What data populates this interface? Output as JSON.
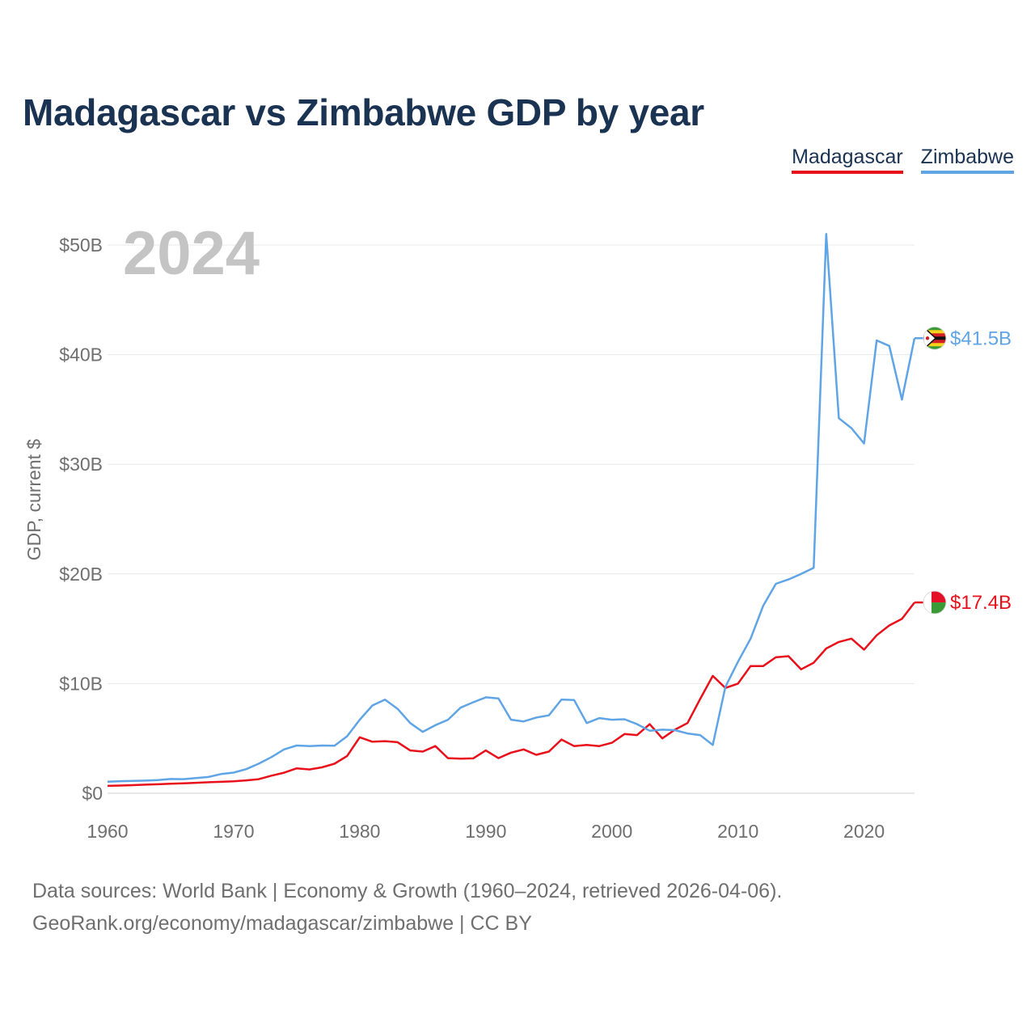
{
  "chart_data": {
    "type": "line",
    "title": "Madagascar vs Zimbabwe GDP by year",
    "ylabel": "GDP, current $",
    "xlabel": "",
    "year_label": "2024",
    "xlim": [
      1960,
      2024
    ],
    "ylim": [
      0,
      52
    ],
    "x_ticks": [
      1960,
      1970,
      1980,
      1990,
      2000,
      2010,
      2020
    ],
    "y_ticks": [
      {
        "value": 0,
        "label": "$0"
      },
      {
        "value": 10,
        "label": "$10B"
      },
      {
        "value": 20,
        "label": "$20B"
      },
      {
        "value": 30,
        "label": "$30B"
      },
      {
        "value": 40,
        "label": "$40B"
      },
      {
        "value": 50,
        "label": "$50B"
      }
    ],
    "grid": true,
    "legend_position": "top-right",
    "unit": "billions USD",
    "series": [
      {
        "name": "Madagascar",
        "color": "#e8101a",
        "end_label": "$17.4B",
        "flag": "madagascar-flag",
        "x": [
          1960,
          1961,
          1962,
          1963,
          1964,
          1965,
          1966,
          1967,
          1968,
          1969,
          1970,
          1971,
          1972,
          1973,
          1974,
          1975,
          1976,
          1977,
          1978,
          1979,
          1980,
          1981,
          1982,
          1983,
          1984,
          1985,
          1986,
          1987,
          1988,
          1989,
          1990,
          1991,
          1992,
          1993,
          1994,
          1995,
          1996,
          1997,
          1998,
          1999,
          2000,
          2001,
          2002,
          2003,
          2004,
          2005,
          2006,
          2007,
          2008,
          2009,
          2010,
          2011,
          2012,
          2013,
          2014,
          2015,
          2016,
          2017,
          2018,
          2019,
          2020,
          2021,
          2022,
          2023,
          2024
        ],
        "values": [
          0.67,
          0.7,
          0.74,
          0.78,
          0.82,
          0.86,
          0.9,
          0.95,
          1.0,
          1.04,
          1.09,
          1.17,
          1.28,
          1.6,
          1.87,
          2.27,
          2.17,
          2.36,
          2.69,
          3.4,
          5.1,
          4.7,
          4.75,
          4.65,
          3.9,
          3.8,
          4.3,
          3.2,
          3.15,
          3.18,
          3.9,
          3.2,
          3.7,
          4.0,
          3.5,
          3.8,
          4.9,
          4.3,
          4.4,
          4.3,
          4.6,
          5.4,
          5.3,
          6.3,
          5.0,
          5.8,
          6.4,
          8.6,
          10.7,
          9.6,
          10.0,
          11.6,
          11.6,
          12.4,
          12.5,
          11.3,
          11.9,
          13.2,
          13.8,
          14.1,
          13.1,
          14.4,
          15.3,
          15.9,
          17.4
        ]
      },
      {
        "name": "Zimbabwe",
        "color": "#5fa5e6",
        "end_label": "$41.5B",
        "flag": "zimbabwe-flag",
        "x": [
          1960,
          1961,
          1962,
          1963,
          1964,
          1965,
          1966,
          1967,
          1968,
          1969,
          1970,
          1971,
          1972,
          1973,
          1974,
          1975,
          1976,
          1977,
          1978,
          1979,
          1980,
          1981,
          1982,
          1983,
          1984,
          1985,
          1986,
          1987,
          1988,
          1989,
          1990,
          1991,
          1992,
          1993,
          1994,
          1995,
          1996,
          1997,
          1998,
          1999,
          2000,
          2001,
          2002,
          2003,
          2004,
          2005,
          2006,
          2007,
          2008,
          2009,
          2010,
          2011,
          2012,
          2013,
          2014,
          2015,
          2016,
          2017,
          2018,
          2019,
          2020,
          2021,
          2022,
          2023,
          2024
        ],
        "values": [
          1.05,
          1.1,
          1.12,
          1.15,
          1.2,
          1.3,
          1.28,
          1.38,
          1.48,
          1.75,
          1.88,
          2.2,
          2.7,
          3.3,
          4.0,
          4.35,
          4.3,
          4.35,
          4.33,
          5.2,
          6.7,
          8.0,
          8.54,
          7.7,
          6.4,
          5.6,
          6.2,
          6.7,
          7.8,
          8.3,
          8.75,
          8.65,
          6.7,
          6.55,
          6.9,
          7.1,
          8.55,
          8.5,
          6.4,
          6.85,
          6.7,
          6.75,
          6.3,
          5.7,
          5.8,
          5.75,
          5.45,
          5.3,
          4.4,
          9.7,
          12.0,
          14.1,
          17.1,
          19.1,
          19.5,
          20.0,
          20.55,
          51.0,
          34.2,
          33.3,
          31.9,
          41.3,
          40.8,
          35.9,
          41.5
        ]
      }
    ]
  },
  "footer": {
    "source_line": "Data sources: World Bank | Economy & Growth (1960–2024, retrieved 2026-04-06).",
    "credit_line": "GeoRank.org/economy/madagascar/zimbabwe | CC BY"
  }
}
